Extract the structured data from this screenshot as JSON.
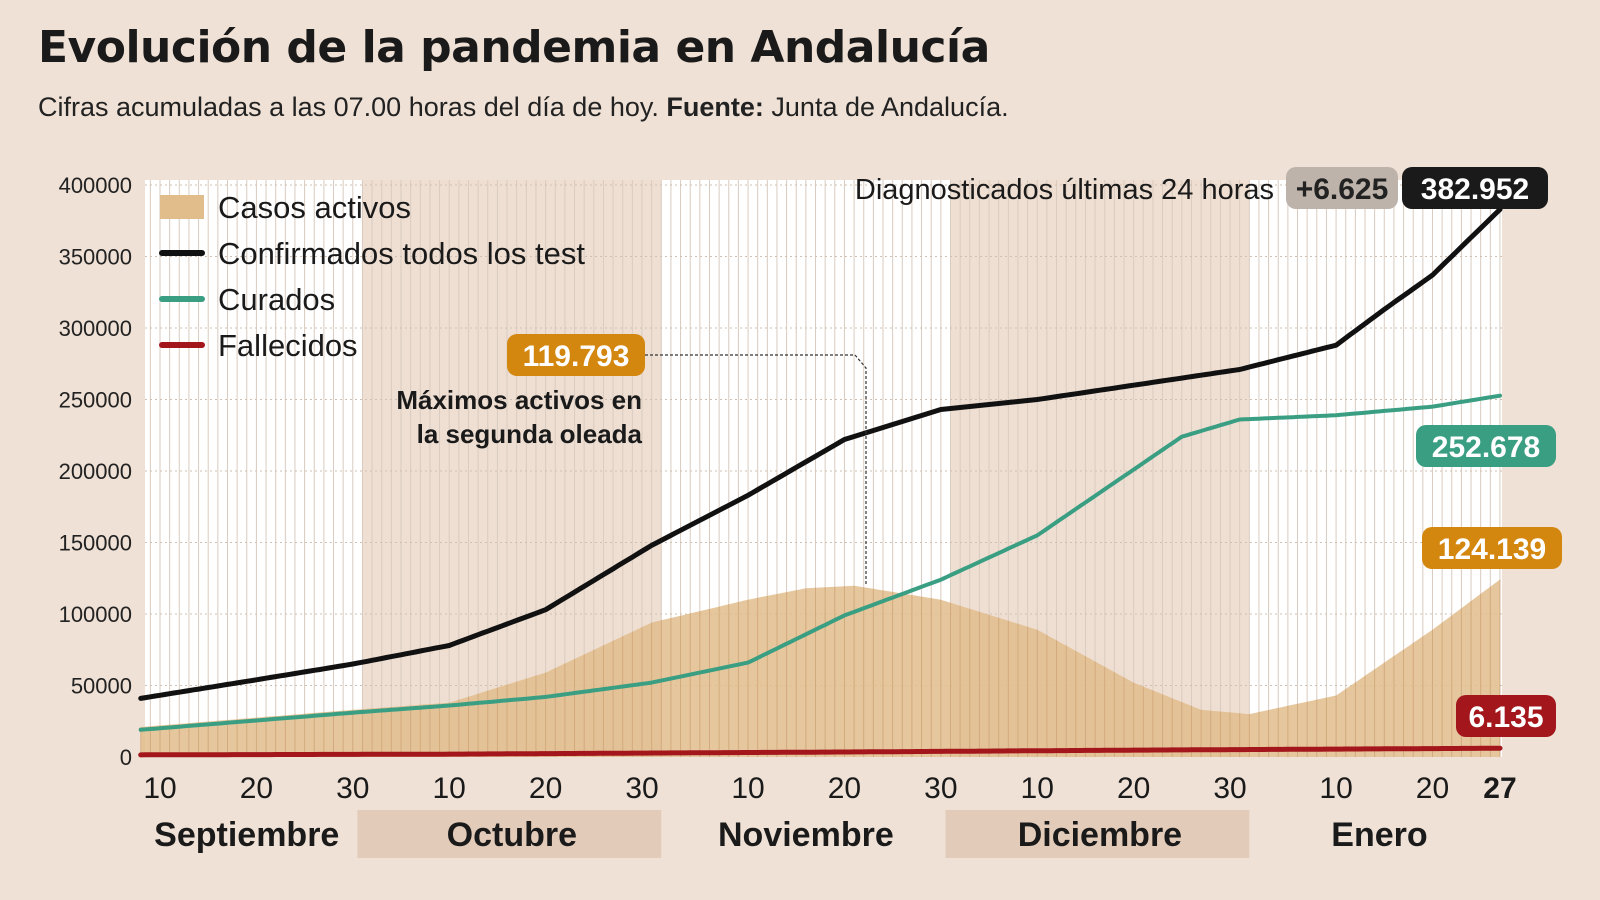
{
  "header": {
    "title": "Evolución de la pandemia en Andalucía",
    "subtitle_text": "Cifras acumuladas a las 07.00 horas del día de hoy.",
    "subtitle_source_label": "Fuente:",
    "subtitle_source": "Junta de Andalucía."
  },
  "chart_data": {
    "type": "area",
    "title": "Evolución de la pandemia en Andalucía",
    "subtitle": "Cifras acumuladas a las 07.00 horas del día de hoy. Fuente: Junta de Andalucía.",
    "ylim": [
      0,
      400000
    ],
    "yticks": [
      "0",
      "50000",
      "100000",
      "150000",
      "200000",
      "250000",
      "300000",
      "350000",
      "400000"
    ],
    "grid": true,
    "legend_position": "top-left",
    "xticks": [
      {
        "date": "2020-09-10",
        "label": "10"
      },
      {
        "date": "2020-09-20",
        "label": "20"
      },
      {
        "date": "2020-09-30",
        "label": "30"
      },
      {
        "date": "2020-10-10",
        "label": "10"
      },
      {
        "date": "2020-10-20",
        "label": "20"
      },
      {
        "date": "2020-10-30",
        "label": "30"
      },
      {
        "date": "2020-11-10",
        "label": "10"
      },
      {
        "date": "2020-11-20",
        "label": "20"
      },
      {
        "date": "2020-11-30",
        "label": "30"
      },
      {
        "date": "2020-12-10",
        "label": "10"
      },
      {
        "date": "2020-12-20",
        "label": "20"
      },
      {
        "date": "2020-12-30",
        "label": "30"
      },
      {
        "date": "2021-01-10",
        "label": "10"
      },
      {
        "date": "2021-01-20",
        "label": "20"
      },
      {
        "date": "2021-01-27",
        "label": "27",
        "bold": true
      }
    ],
    "months": [
      {
        "label": "Septiembre",
        "start": "2020-09-07",
        "end": "2020-10-01",
        "shaded": false
      },
      {
        "label": "Octubre",
        "start": "2020-10-01",
        "end": "2020-11-01",
        "shaded": true
      },
      {
        "label": "Noviembre",
        "start": "2020-11-01",
        "end": "2020-12-01",
        "shaded": false
      },
      {
        "label": "Diciembre",
        "start": "2020-12-01",
        "end": "2021-01-01",
        "shaded": true
      },
      {
        "label": "Enero",
        "start": "2021-01-01",
        "end": "2021-01-28",
        "shaded": false
      }
    ],
    "series": [
      {
        "name": "Casos activos",
        "type": "area",
        "color": "#e2bd8c",
        "x": [
          "2020-09-08",
          "2020-09-30",
          "2020-10-10",
          "2020-10-20",
          "2020-10-31",
          "2020-11-10",
          "2020-11-16",
          "2020-11-21",
          "2020-11-30",
          "2020-12-10",
          "2020-12-20",
          "2020-12-27",
          "2021-01-01",
          "2021-01-10",
          "2021-01-20",
          "2021-01-27"
        ],
        "y": [
          21000,
          33000,
          38000,
          59000,
          94000,
          110000,
          118000,
          119793,
          110000,
          89000,
          52000,
          33000,
          30000,
          43000,
          89000,
          124139
        ]
      },
      {
        "name": "Confirmados todos los test",
        "type": "line",
        "color": "#111111",
        "x": [
          "2020-09-08",
          "2020-09-20",
          "2020-09-30",
          "2020-10-10",
          "2020-10-20",
          "2020-10-31",
          "2020-11-10",
          "2020-11-20",
          "2020-11-30",
          "2020-12-10",
          "2020-12-20",
          "2020-12-31",
          "2021-01-10",
          "2021-01-15",
          "2021-01-20",
          "2021-01-27"
        ],
        "y": [
          41000,
          54000,
          65000,
          78000,
          103000,
          148000,
          183000,
          222000,
          243000,
          250000,
          260000,
          271000,
          288000,
          313000,
          337000,
          382952
        ]
      },
      {
        "name": "Curados",
        "type": "line",
        "color": "#3a9e82",
        "x": [
          "2020-09-08",
          "2020-09-30",
          "2020-10-10",
          "2020-10-20",
          "2020-10-31",
          "2020-11-10",
          "2020-11-20",
          "2020-11-30",
          "2020-12-10",
          "2020-12-20",
          "2020-12-25",
          "2020-12-31",
          "2021-01-10",
          "2021-01-20",
          "2021-01-27"
        ],
        "y": [
          19000,
          31000,
          36000,
          42000,
          52000,
          66000,
          99000,
          124000,
          155000,
          201000,
          224000,
          236000,
          239000,
          245000,
          252678
        ]
      },
      {
        "name": "Fallecidos",
        "type": "line",
        "color": "#a3161c",
        "x": [
          "2020-09-08",
          "2020-10-10",
          "2020-11-20",
          "2020-12-20",
          "2021-01-27"
        ],
        "y": [
          1500,
          2000,
          3500,
          4800,
          6135
        ]
      }
    ],
    "annotations": {
      "peak": {
        "label": "119.793",
        "date": "2020-11-21",
        "value": 119793,
        "text_line1": "Máximos activos en",
        "text_line2": "la segunda oleada",
        "color": "#d4870f"
      },
      "last24_label": "Diagnosticados últimas 24 horas",
      "last24_value": "+6.625",
      "confirmed_end": {
        "label": "382.952",
        "color": "#1a1a1a"
      },
      "cured_end": {
        "label": "252.678",
        "color": "#3a9e82"
      },
      "active_end": {
        "label": "124.139",
        "color": "#d4870f"
      },
      "deaths_end": {
        "label": "6.135",
        "color": "#a3161c"
      }
    }
  }
}
